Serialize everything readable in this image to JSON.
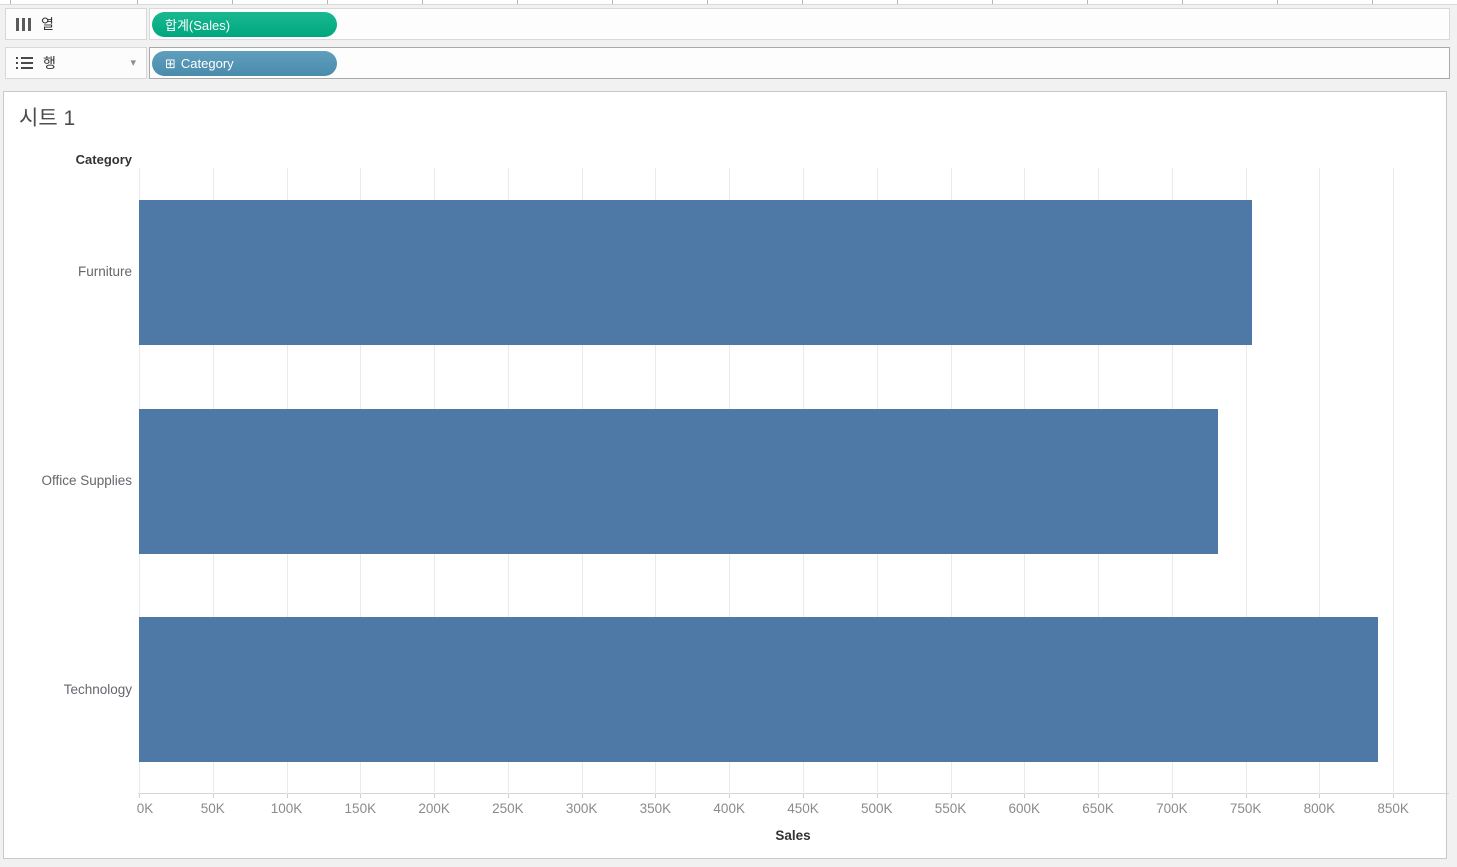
{
  "shelves": {
    "columns_label": "열",
    "rows_label": "행",
    "columns_pill": "합계(Sales)",
    "rows_pill": "Category"
  },
  "icons": {
    "squared_plus": "⊞",
    "chevron_down": "▾"
  },
  "colors": {
    "measure_pill_green": "#00b085",
    "dimension_pill_blue": "#4e93b5",
    "bar_blue": "#4e79a7"
  },
  "sheet": {
    "title": "시트 1"
  },
  "chart_data": {
    "type": "bar",
    "orientation": "horizontal",
    "title": "시트 1",
    "row_header": "Category",
    "categories": [
      "Furniture",
      "Office Supplies",
      "Technology"
    ],
    "values": [
      754000,
      731500,
      840000
    ],
    "xlabel": "Sales",
    "x_tick_values": [
      0,
      50000,
      100000,
      150000,
      200000,
      250000,
      300000,
      350000,
      400000,
      450000,
      500000,
      550000,
      600000,
      650000,
      700000,
      750000,
      800000,
      850000
    ],
    "x_tick_labels": [
      "0K",
      "50K",
      "100K",
      "150K",
      "200K",
      "250K",
      "300K",
      "350K",
      "400K",
      "450K",
      "500K",
      "550K",
      "600K",
      "650K",
      "700K",
      "750K",
      "800K",
      "850K"
    ],
    "xlim": [
      0,
      888000
    ],
    "grid": true,
    "legend": "none",
    "bar_color": "#4e79a7"
  }
}
